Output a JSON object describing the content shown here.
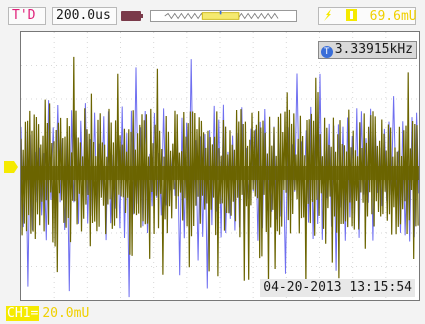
{
  "header": {
    "trigger_mode": "T'D",
    "timebase": "200.0us",
    "trigger_level": "69.6mU"
  },
  "icons": {
    "memory": "memory-depth-icon",
    "trigger_edge": "lightning-edge-icon",
    "trigger_source": "channel-1-icon",
    "trigger_position": "trigger-marker-icon",
    "channel_level": "channel-1-level-icon"
  },
  "screen": {
    "frequency": "3.33915kHz",
    "frequency_badge": "T",
    "timestamp": "04-20-2013 13:15:54"
  },
  "channel": {
    "tag": "CH1=",
    "scale": "20.0mU",
    "color": "#6b6400",
    "overlay_color": "#6f6ff0"
  },
  "colors": {
    "grid": "#d7d7d7",
    "trace": "#6b6400",
    "trace_alt": "#6f6ff0",
    "accent_yellow": "#f5d800",
    "accent_pink": "#e0207a",
    "accent_blue": "#3a6ed8"
  }
}
